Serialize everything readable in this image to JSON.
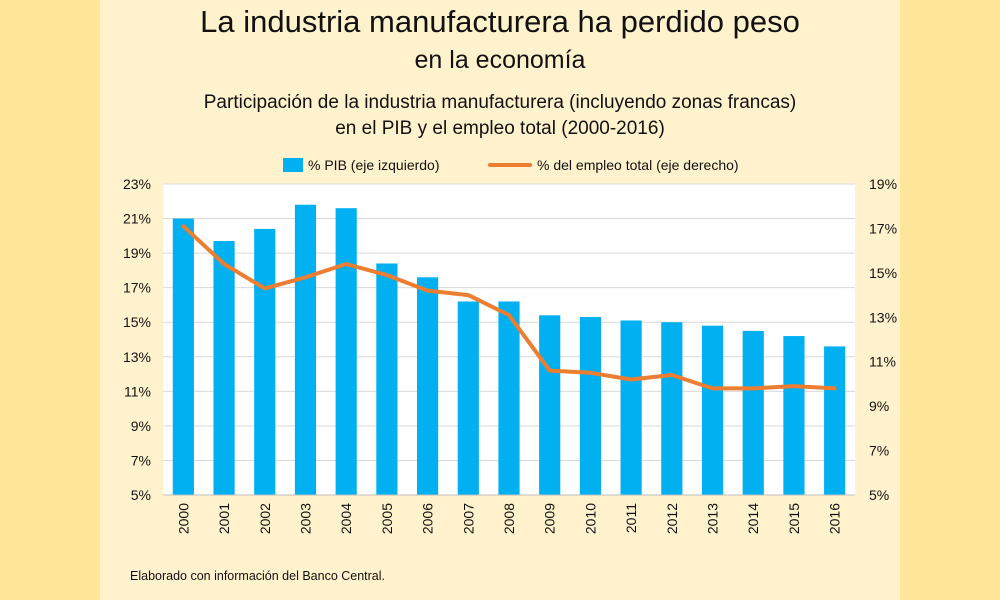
{
  "title": "La industria manufacturera ha perdido peso",
  "title_line2": "en la economía",
  "subtitle": "Participación de la industria manufacturera (incluyendo zonas francas)",
  "subtitle_line2": "en el PIB y el empleo total (2000-2016)",
  "note": "Elaborado con información del Banco Central.",
  "colors": {
    "outer_background": "#FFE699",
    "panel_background": "#FFF2CC",
    "bars": "#00B0F0",
    "line": "#ED7D31"
  },
  "chart_data": {
    "type": "bar",
    "categories": [
      "2000",
      "2001",
      "2002",
      "2003",
      "2004",
      "2005",
      "2006",
      "2007",
      "2008",
      "2009",
      "2010",
      "2011",
      "2012",
      "2013",
      "2014",
      "2015",
      "2016"
    ],
    "series": [
      {
        "name": "% PIB (eje izquierdo)",
        "type": "bar",
        "axis": "left",
        "values": [
          21.0,
          19.7,
          20.4,
          21.8,
          21.6,
          18.4,
          17.6,
          16.2,
          16.2,
          15.4,
          15.3,
          15.1,
          15.0,
          14.8,
          14.5,
          14.2,
          13.6
        ]
      },
      {
        "name": "% del empleo total (eje derecho)",
        "type": "line",
        "axis": "right",
        "values": [
          17.1,
          15.4,
          14.3,
          14.8,
          15.4,
          14.9,
          14.2,
          14.0,
          13.1,
          10.6,
          10.5,
          10.2,
          10.4,
          9.8,
          9.8,
          9.9,
          9.8
        ]
      }
    ],
    "y_left": {
      "ylim": [
        5,
        23
      ],
      "ticks": [
        5,
        7,
        9,
        11,
        13,
        15,
        17,
        19,
        21,
        23
      ],
      "tick_labels": [
        "5%",
        "7%",
        "9%",
        "11%",
        "13%",
        "15%",
        "17%",
        "19%",
        "21%",
        "23%"
      ]
    },
    "y_right": {
      "ylim": [
        5,
        19
      ],
      "ticks": [
        5,
        7,
        9,
        11,
        13,
        15,
        17,
        19
      ],
      "tick_labels": [
        "5%",
        "7%",
        "9%",
        "11%",
        "13%",
        "15%",
        "17%",
        "19%"
      ]
    },
    "grid": true,
    "legend_position": "top"
  }
}
